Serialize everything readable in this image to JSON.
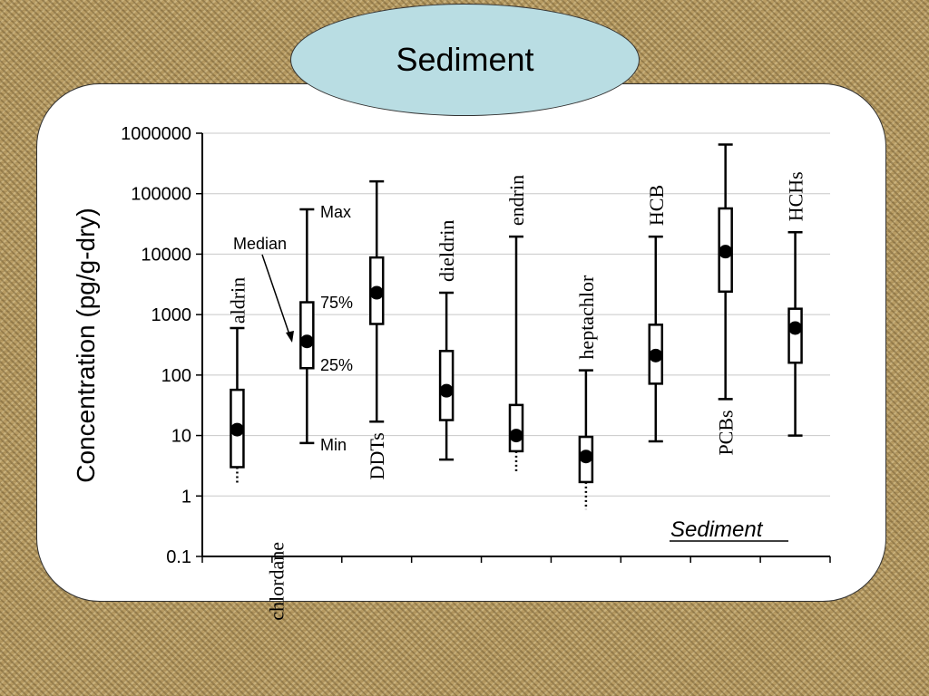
{
  "slide": {
    "title": "Sediment"
  },
  "chart_data": {
    "type": "box",
    "title": "",
    "ylabel": "Concentration  (pg/g-dry)",
    "xlabel": "",
    "yscale": "log",
    "ylim": [
      0.1,
      1000000
    ],
    "yticks": [
      "0.1",
      "1",
      "10",
      "100",
      "1000",
      "10000",
      "100000",
      "1000000"
    ],
    "grid": "horizontal",
    "inset_label": "Sediment",
    "categories": [
      "aldrin",
      "chlordane",
      "DDTs",
      "dieldrin",
      "endrin",
      "heptachlor",
      "HCB",
      "PCBs",
      "HCHs"
    ],
    "series": [
      {
        "category": "aldrin",
        "min": 1.6,
        "q1": 3,
        "median": 12.5,
        "q3": 57,
        "max": 600,
        "min_below_detection": true
      },
      {
        "category": "chlordane",
        "min": 7.5,
        "q1": 130,
        "median": 360,
        "q3": 1600,
        "max": 55000,
        "min_below_detection": false
      },
      {
        "category": "DDTs",
        "min": 17,
        "q1": 700,
        "median": 2300,
        "q3": 8800,
        "max": 160000,
        "min_below_detection": false
      },
      {
        "category": "dieldrin",
        "min": 4,
        "q1": 18,
        "median": 55,
        "q3": 250,
        "max": 2300,
        "min_below_detection": false
      },
      {
        "category": "endrin",
        "min": 2.5,
        "q1": 5.5,
        "median": 10,
        "q3": 32,
        "max": 19500,
        "min_below_detection": true
      },
      {
        "category": "heptachlor",
        "min": 0.6,
        "q1": 1.7,
        "median": 4.5,
        "q3": 9.5,
        "max": 120,
        "min_below_detection": true
      },
      {
        "category": "HCB",
        "min": 8,
        "q1": 72,
        "median": 210,
        "q3": 680,
        "max": 19500,
        "min_below_detection": false
      },
      {
        "category": "PCBs",
        "min": 40,
        "q1": 2400,
        "median": 11000,
        "q3": 57000,
        "max": 650000,
        "min_below_detection": false
      },
      {
        "category": "HCHs",
        "min": 10,
        "q1": 160,
        "median": 600,
        "q3": 1250,
        "max": 23000,
        "min_below_detection": false
      }
    ],
    "annotations": {
      "max": "Max",
      "median": "Median",
      "q3": "75%",
      "q1": "25%",
      "min": "Min"
    }
  }
}
